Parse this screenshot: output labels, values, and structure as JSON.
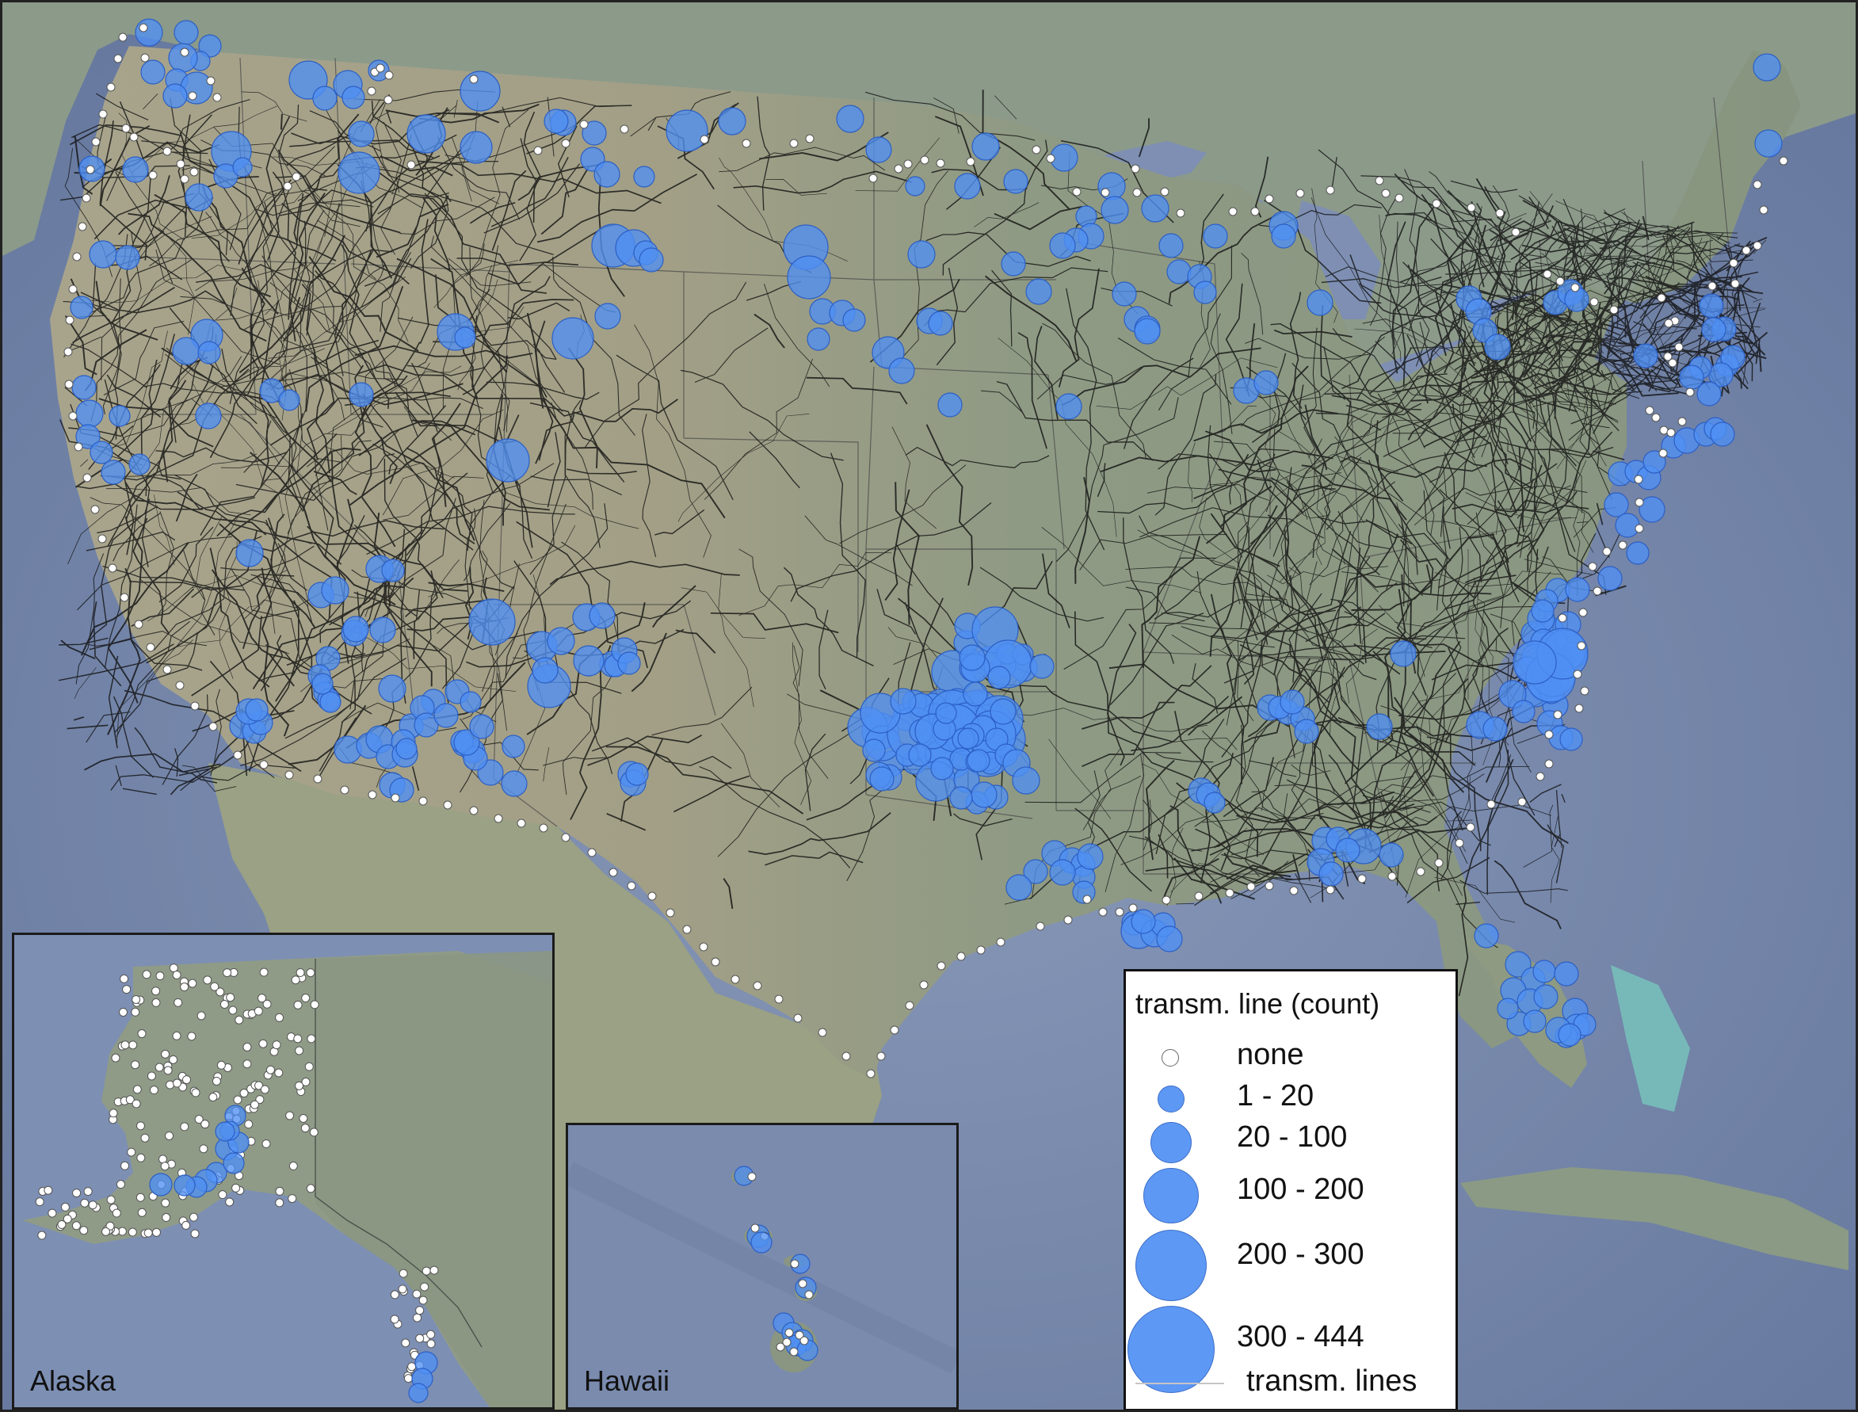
{
  "map": {
    "colors": {
      "ocean": "#6f82a6",
      "land": "#8b9881",
      "land_west": "#a9a48d",
      "transmission_line": "#111111",
      "circle_fill": "#4f8ff3",
      "circle_stroke": "#2c5fc4",
      "none_fill": "#ffffff"
    }
  },
  "insets": {
    "alaska_label": "Alaska",
    "hawaii_label": "Hawaii"
  },
  "legend": {
    "title": "transm. line (count)",
    "items": [
      {
        "label": "none",
        "category": "none"
      },
      {
        "label": "1 - 20",
        "category": "1-20"
      },
      {
        "label": "20 - 100",
        "category": "20-100"
      },
      {
        "label": "100 - 200",
        "category": "100-200"
      },
      {
        "label": "200 - 300",
        "category": "200-300"
      },
      {
        "label": "300 - 444",
        "category": "300-444"
      }
    ],
    "line_label": "transm.  lines"
  }
}
